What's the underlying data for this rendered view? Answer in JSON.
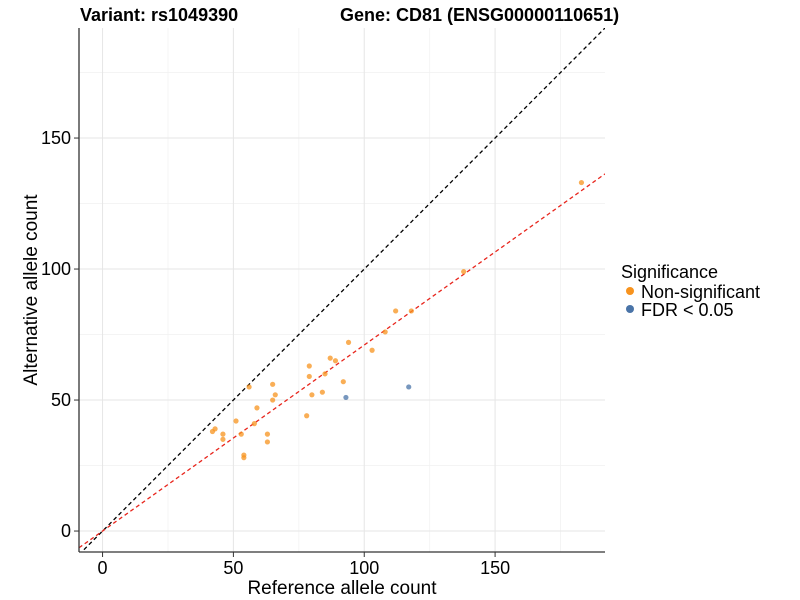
{
  "chart_data": {
    "type": "scatter",
    "title_left": "Variant: rs1049390",
    "title_right": "Gene: CD81 (ENSG00000110651)",
    "xlabel": "Reference allele count",
    "ylabel": "Alternative allele count",
    "xlim": [
      -9,
      192
    ],
    "ylim": [
      -8,
      192
    ],
    "xticks": [
      0,
      50,
      100,
      150
    ],
    "yticks": [
      0,
      50,
      100,
      150
    ],
    "xtick_labels": [
      "0",
      "50",
      "100",
      "150"
    ],
    "ytick_labels": [
      "0",
      "50",
      "100",
      "150"
    ],
    "grid": true,
    "legend": {
      "title": "Significance",
      "position": "right",
      "entries": [
        {
          "label": "Non-significant",
          "color": "#F7931E"
        },
        {
          "label": "FDR < 0.05",
          "color": "#4A74A8"
        }
      ]
    },
    "reference_lines": [
      {
        "name": "identity",
        "slope": 1.0,
        "intercept": 0,
        "color": "#000000",
        "style": "dashed"
      },
      {
        "name": "fit",
        "slope": 0.71,
        "intercept": 0,
        "color": "#E8251C",
        "style": "dashed"
      }
    ],
    "series": [
      {
        "name": "Non-significant",
        "color": "#F7931E",
        "points": [
          [
            42,
            38
          ],
          [
            43,
            39
          ],
          [
            46,
            37
          ],
          [
            46,
            35
          ],
          [
            51,
            42
          ],
          [
            53,
            37
          ],
          [
            54,
            29
          ],
          [
            54,
            28
          ],
          [
            56,
            55
          ],
          [
            58,
            41
          ],
          [
            59,
            47
          ],
          [
            63,
            37
          ],
          [
            63,
            34
          ],
          [
            65,
            56
          ],
          [
            65,
            50
          ],
          [
            66,
            52
          ],
          [
            78,
            44
          ],
          [
            79,
            63
          ],
          [
            79,
            59
          ],
          [
            80,
            52
          ],
          [
            84,
            53
          ],
          [
            85,
            60
          ],
          [
            87,
            66
          ],
          [
            89,
            65
          ],
          [
            92,
            57
          ],
          [
            94,
            72
          ],
          [
            103,
            69
          ],
          [
            108,
            76
          ],
          [
            112,
            84
          ],
          [
            118,
            84
          ],
          [
            138,
            99
          ],
          [
            183,
            133
          ]
        ]
      },
      {
        "name": "FDR < 0.05",
        "color": "#4A74A8",
        "points": [
          [
            93,
            51
          ],
          [
            117,
            55
          ]
        ]
      }
    ]
  }
}
